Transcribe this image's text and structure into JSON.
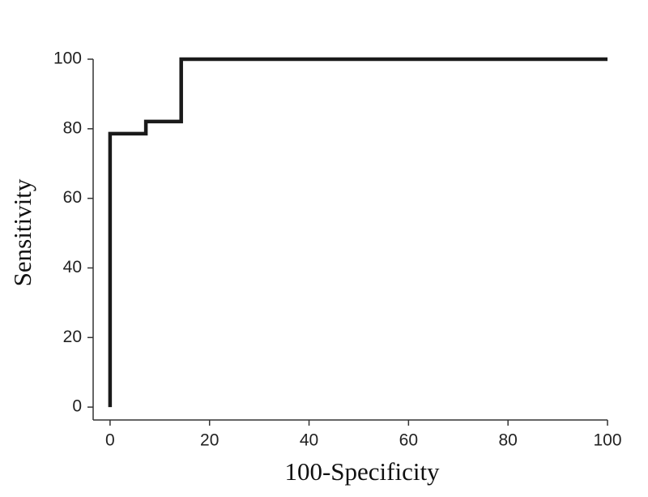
{
  "chart_data": {
    "type": "line",
    "xlabel": "100-Specificity",
    "ylabel": "Sensitivity",
    "x": [
      0,
      0,
      7.2,
      7.2,
      14.3,
      14.3,
      100
    ],
    "values": [
      0,
      78.6,
      78.6,
      82.1,
      82.1,
      100,
      100
    ],
    "color": "#1a1a1a",
    "xlim": [
      -3.4,
      100
    ],
    "ylim": [
      -3.7,
      100
    ],
    "xticks": [
      0,
      20,
      40,
      60,
      80,
      100
    ],
    "yticks": [
      0,
      20,
      40,
      60,
      80,
      100
    ]
  }
}
